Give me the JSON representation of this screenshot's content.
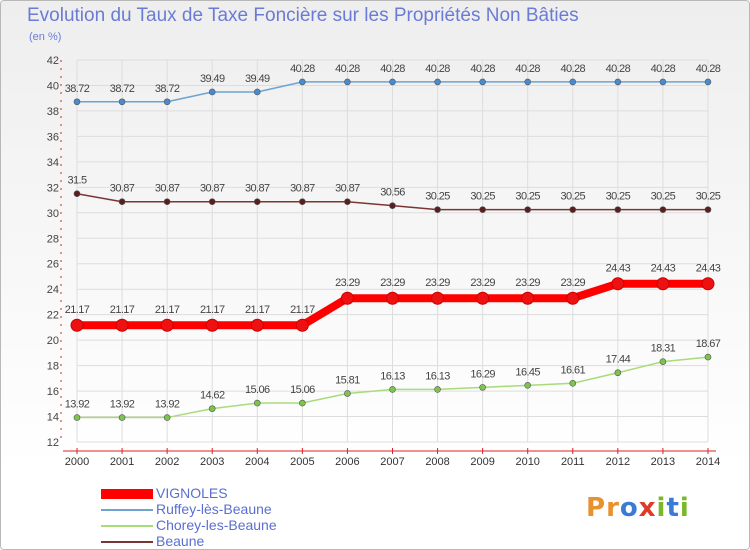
{
  "header": {
    "title": "Evolution du Taux de Taxe Foncière sur les Propriétés Non Bâties",
    "unit": "(en %)"
  },
  "logo": {
    "text": "Proxiti",
    "letters": [
      "P",
      "r",
      "o",
      "x",
      "i",
      "t",
      "i"
    ],
    "colors": [
      "#e8912d",
      "#e8912d",
      "#3a7bd5",
      "#e03a2a",
      "#7bb829",
      "#3a7bd5",
      "#7bb829"
    ]
  },
  "chart_data": {
    "type": "line",
    "title": "Evolution du Taux de Taxe Foncière sur les Propriétés Non Bâties",
    "ylabel": "(en %)",
    "xlabel": "",
    "ylim": [
      12,
      42
    ],
    "yticks": [
      12,
      14,
      16,
      18,
      20,
      22,
      24,
      26,
      28,
      30,
      32,
      34,
      36,
      38,
      40,
      42
    ],
    "x": [
      "2000",
      "2001",
      "2002",
      "2003",
      "2004",
      "2005",
      "2006",
      "2007",
      "2008",
      "2009",
      "2010",
      "2011",
      "2012",
      "2013",
      "2014"
    ],
    "grid": true,
    "series": [
      {
        "name": "Ruffey-lès-Beaune",
        "color": "#6ea3d0",
        "marker": "#4a8bd0",
        "values": [
          38.72,
          38.72,
          38.72,
          39.49,
          39.49,
          40.28,
          40.28,
          40.28,
          40.28,
          40.28,
          40.28,
          40.28,
          40.28,
          40.28,
          40.28
        ],
        "labels": [
          "38.72",
          "38.72",
          "38.72",
          "39.49",
          "39.49",
          "40.28",
          "40.28",
          "40.28",
          "40.28",
          "40.28",
          "40.28",
          "40.28",
          "40.28",
          "40.28",
          "40.28"
        ]
      },
      {
        "name": "Beaune",
        "color": "#7a3636",
        "marker": "#5a1e1e",
        "values": [
          31.5,
          30.87,
          30.87,
          30.87,
          30.87,
          30.87,
          30.87,
          30.56,
          30.25,
          30.25,
          30.25,
          30.25,
          30.25,
          30.25,
          30.25
        ],
        "labels": [
          "31.5",
          "30.87",
          "30.87",
          "30.87",
          "30.87",
          "30.87",
          "30.87",
          "30.56",
          "30.25",
          "30.25",
          "30.25",
          "30.25",
          "30.25",
          "30.25",
          "30.25"
        ]
      },
      {
        "name": "VIGNOLES",
        "color": "#ff0000",
        "marker": "#ee1111",
        "values": [
          21.17,
          21.17,
          21.17,
          21.17,
          21.17,
          21.17,
          23.29,
          23.29,
          23.29,
          23.29,
          23.29,
          23.29,
          24.43,
          24.43,
          24.43
        ],
        "labels": [
          "21.17",
          "21.17",
          "21.17",
          "21.17",
          "21.17",
          "21.17",
          "23.29",
          "23.29",
          "23.29",
          "23.29",
          "23.29",
          "23.29",
          "24.43",
          "24.43",
          "24.43"
        ]
      },
      {
        "name": "Chorey-les-Beaune",
        "color": "#a8db7a",
        "marker": "#7bc64a",
        "values": [
          13.92,
          13.92,
          13.92,
          14.62,
          15.06,
          15.06,
          15.81,
          16.13,
          16.13,
          16.29,
          16.45,
          16.61,
          17.44,
          18.31,
          18.67
        ],
        "labels": [
          "13.92",
          "13.92",
          "13.92",
          "14.62",
          "15.06",
          "15.06",
          "15.81",
          "16.13",
          "16.13",
          "16.29",
          "16.45",
          "16.61",
          "17.44",
          "18.31",
          "18.67"
        ]
      }
    ],
    "legend": [
      "VIGNOLES",
      "Ruffey-lès-Beaune",
      "Chorey-les-Beaune",
      "Beaune"
    ],
    "legend_colors": [
      "#ff0000",
      "#6ea3d0",
      "#a8db7a",
      "#7a3636"
    ]
  }
}
